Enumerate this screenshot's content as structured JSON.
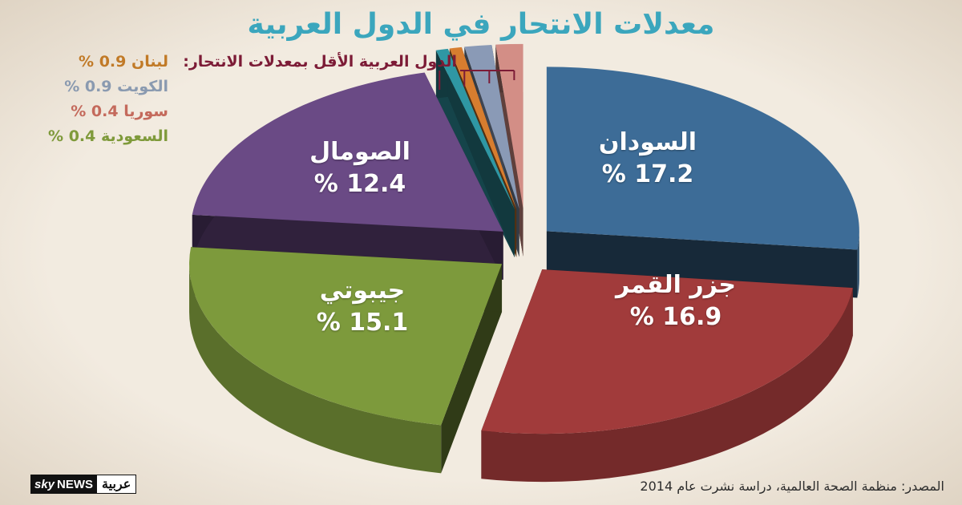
{
  "title": "معدلات الانتحار في الدول العربية",
  "legend_heading": "الدول العربية الأقل بمعدلات الانتحار:",
  "source": "المصدر: منظمة الصحة العالمية، دراسة نشرت عام 2014",
  "logo": {
    "sky": "sky",
    "news": "NEWS",
    "arabic": "عربية"
  },
  "colors": {
    "background": "#efe6d9",
    "title": "#3ba6bd",
    "heading": "#7c1b36"
  },
  "chart_data": {
    "type": "pie",
    "title": "معدلات الانتحار في الدول العربية",
    "unit": "%",
    "slices": [
      {
        "name": "السودان",
        "value": 17.2,
        "display": "% 17.2",
        "color": "#3d6c97"
      },
      {
        "name": "جزر القمر",
        "value": 16.9,
        "display": "% 16.9",
        "color": "#a13b3b"
      },
      {
        "name": "جيبوتي",
        "value": 15.1,
        "display": "% 15.1",
        "color": "#7d9a3c"
      },
      {
        "name": "الصومال",
        "value": 12.4,
        "display": "% 12.4",
        "color": "#6a4a85"
      },
      {
        "name": "السعودية",
        "value": 0.4,
        "display": "0.4 %",
        "color": "#2f97a4",
        "legend_color": "#7f9a3b"
      },
      {
        "name": "سوريا",
        "value": 0.4,
        "display": "0.4 %",
        "color": "#d77d2f",
        "legend_color": "#c46a5c"
      },
      {
        "name": "الكويت",
        "value": 0.9,
        "display": "0.9 %",
        "color": "#8a9ab6",
        "legend_color": "#8a9ab0"
      },
      {
        "name": "لبنان",
        "value": 0.9,
        "display": "0.9 %",
        "color": "#d38e86",
        "legend_color": "#c17a27"
      }
    ],
    "legend": [
      {
        "name": "لبنان",
        "text": "لبنان 0.9 %",
        "color": "#c17a27"
      },
      {
        "name": "الكويت",
        "text": "الكويت 0.9 %",
        "color": "#8a9ab0"
      },
      {
        "name": "سوريا",
        "text": "سوريا 0.4 %",
        "color": "#c46a5c"
      },
      {
        "name": "السعودية",
        "text": "السعودية 0.4 %",
        "color": "#7f9a3b"
      }
    ]
  }
}
